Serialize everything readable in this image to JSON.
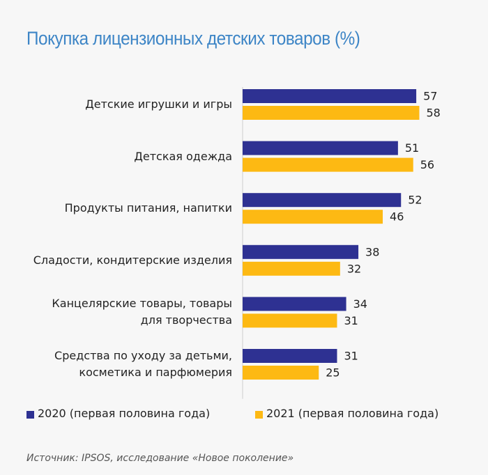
{
  "chart_data": {
    "type": "bar",
    "orientation": "horizontal",
    "title": "Покупка лицензионных детских товаров (%)",
    "categories": [
      "Детские игрушки и игры",
      "Детская одежда",
      "Продукты питания, напитки",
      "Сладости, кондитерские изделия",
      "Канцелярские товары, товары\nдля творчества",
      "Средства по уходу за детьми,\nкосметика и парфюмерия"
    ],
    "series": [
      {
        "name": "2020 (первая половина года)",
        "color": "#2e3192",
        "values": [
          57,
          51,
          52,
          38,
          34,
          31
        ]
      },
      {
        "name": "2021 (первая половина года)",
        "color": "#fdb913",
        "values": [
          58,
          56,
          46,
          32,
          31,
          25
        ]
      }
    ],
    "legend": "bottom",
    "source": "Источник: IPSOS, исследование «Новое поколение»"
  }
}
